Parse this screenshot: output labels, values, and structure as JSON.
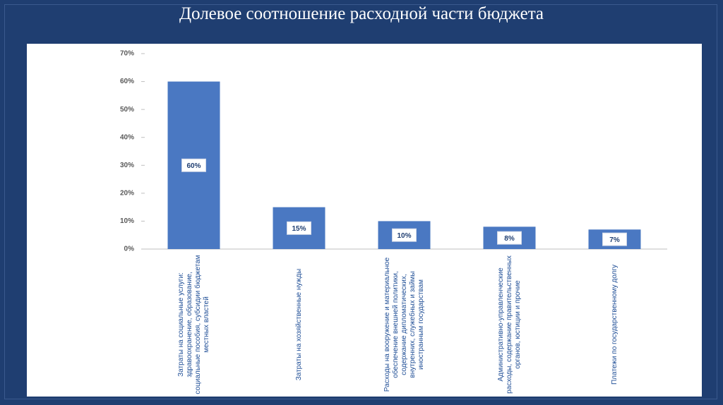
{
  "chart_data": {
    "type": "bar",
    "title": "Долевое соотношение расходной части бюджета",
    "categories": [
      "Затраты на социальные услуги: здравоохранение, образование, социальные пособия, субсидии бюджетам местных властей",
      "Затраты на хозяйственные нужды",
      "Расходы на вооружение и материальное обеспечение внешней политики, содержание дипломатических, внутренних, служебных и займы иностранным государствам",
      "Административно-управленческие расходы, содержание правительственных органов, юстиции и прочие",
      "Платежи по государственному долгу"
    ],
    "values": [
      60,
      15,
      10,
      8,
      7
    ],
    "value_labels": [
      "60%",
      "15%",
      "10%",
      "8%",
      "7%"
    ],
    "color": "#4a78c2",
    "ylim": [
      0,
      70
    ],
    "yticks": [
      {
        "value": 0,
        "label": "0%"
      },
      {
        "value": 10,
        "label": "10%"
      },
      {
        "value": 20,
        "label": "20%"
      },
      {
        "value": 30,
        "label": "30%"
      },
      {
        "value": 40,
        "label": "40%"
      },
      {
        "value": 50,
        "label": "50%"
      },
      {
        "value": 60,
        "label": "60%"
      },
      {
        "value": 70,
        "label": "70%"
      }
    ]
  }
}
